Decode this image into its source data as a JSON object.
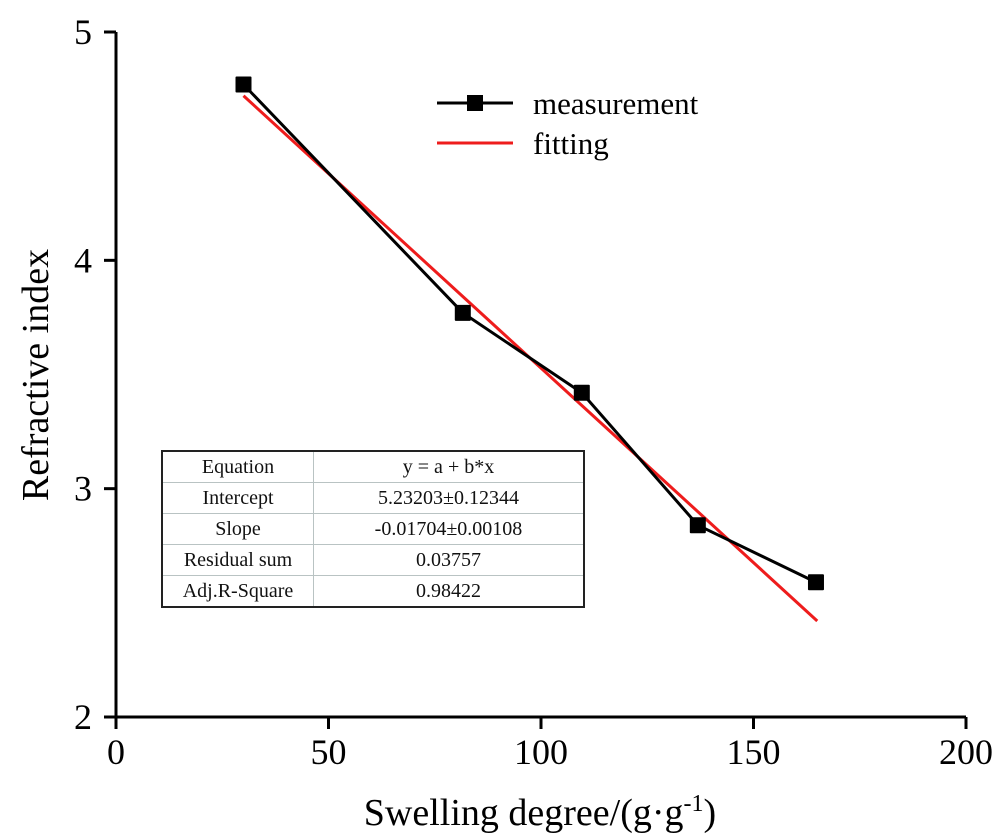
{
  "chart_data": {
    "type": "line",
    "title": "",
    "xlabel": "Swelling degree/(g·g",
    "xlabel_sup": "-1",
    "xlabel_close": ")",
    "ylabel": "Refractive index",
    "xlim": [
      0,
      200
    ],
    "ylim": [
      2,
      5
    ],
    "xticks": [
      0,
      50,
      100,
      150,
      200
    ],
    "xtick_labels": [
      "0",
      "50",
      "100",
      "150",
      "200"
    ],
    "yticks": [
      2,
      3,
      4,
      5
    ],
    "ytick_labels": [
      "2",
      "3",
      "4",
      "5"
    ],
    "grid": false,
    "legend": {
      "position": "top-center"
    },
    "series": [
      {
        "name": "measurement",
        "type": "line+marker",
        "marker": "square",
        "color": "#000000",
        "x": [
          30,
          81.6,
          109.6,
          136.9,
          164.7
        ],
        "y": [
          4.77,
          3.77,
          3.42,
          2.84,
          2.59
        ]
      },
      {
        "name": "fitting",
        "type": "line",
        "color": "#ee1c1c",
        "intercept": 5.23203,
        "slope": -0.01704,
        "x_range": [
          30,
          165
        ]
      }
    ],
    "fit_table": {
      "rows": [
        {
          "key": "Equation",
          "value": "y = a + b*x"
        },
        {
          "key": "Intercept",
          "value": "5.23203±0.12344"
        },
        {
          "key": "Slope",
          "value": "-0.01704±0.00108"
        },
        {
          "key": "Residual sum",
          "value": "0.03757"
        },
        {
          "key": "Adj.R-Square",
          "value": "0.98422"
        }
      ]
    }
  }
}
